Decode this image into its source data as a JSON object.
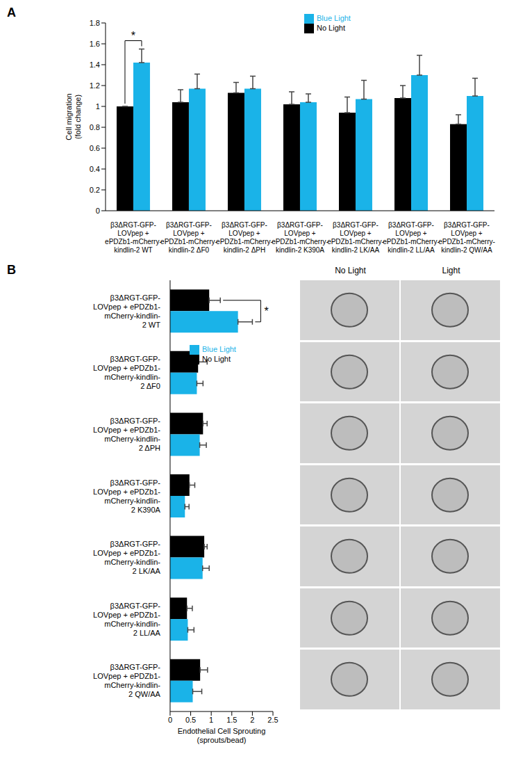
{
  "chart_data": [
    {
      "type": "bar",
      "title": "A",
      "categories": [
        "β3ΔRGT-GFP-LOVpep + ePDZb1-mCherry-kindlin-2 WT",
        "β3ΔRGT-GFP-LOVpep + ePDZb1-mCherry-kindlin-2 ΔF0",
        "β3ΔRGT-GFP-LOVpep + ePDZb1-mCherry-kindlin-2 ΔPH",
        "β3ΔRGT-GFP-LOVpep + ePDZb1-mCherry-kindlin-2 K390A",
        "β3ΔRGT-GFP-LOVpep + ePDZb1-mCherry-kindlin-2 LK/AA",
        "β3ΔRGT-GFP-LOVpep + ePDZb1-mCherry-kindlin-2 LL/AA",
        "β3ΔRGT-GFP-LOVpep + ePDZb1-mCherry-kindlin-2 QW/AA"
      ],
      "series": [
        {
          "name": "No Light",
          "color": "#000000",
          "values": [
            1.0,
            1.04,
            1.13,
            1.02,
            0.94,
            1.08,
            0.83
          ],
          "errors": [
            0.0,
            0.12,
            0.1,
            0.12,
            0.15,
            0.12,
            0.09
          ]
        },
        {
          "name": "Blue Light",
          "color": "#1ab3e8",
          "values": [
            1.42,
            1.17,
            1.17,
            1.04,
            1.07,
            1.3,
            1.1
          ],
          "errors": [
            0.13,
            0.14,
            0.12,
            0.08,
            0.18,
            0.19,
            0.17
          ]
        }
      ],
      "y_label": "Cell migration (fold change)",
      "ylim": [
        0,
        1.8
      ],
      "yticks": [
        0,
        0.2,
        0.4,
        0.6,
        0.8,
        1,
        1.2,
        1.4,
        1.6,
        1.8
      ],
      "grid": false,
      "legend": "top",
      "annotations": [
        {
          "text": "*",
          "category": "β3ΔRGT-GFP-LOVpep + ePDZb1-mCherry-kindlin-2 WT"
        }
      ]
    },
    {
      "type": "bar",
      "title": "B",
      "orientation": "horizontal",
      "categories": [
        "β3ΔRGT-GFP-LOVpep + ePDZb1-mCherry-kindlin-2 WT",
        "β3ΔRGT-GFP-LOVpep + ePDZb1-mCherry-kindlin-2 ΔF0",
        "β3ΔRGT-GFP-LOVpep + ePDZb1-mCherry-kindlin-2 ΔPH",
        "β3ΔRGT-GFP-LOVpep + ePDZb1-mCherry-kindlin-2 K390A",
        "β3ΔRGT-GFP-LOVpep + ePDZb1-mCherry-kindlin-2 LK/AA",
        "β3ΔRGT-GFP-LOVpep + ePDZb1-mCherry-kindlin-2 LL/AA",
        "β3ΔRGT-GFP-LOVpep + ePDZb1-mCherry-kindlin-2 QW/AA"
      ],
      "series": [
        {
          "name": "No Light",
          "color": "#000000",
          "values": [
            0.95,
            0.68,
            0.8,
            0.47,
            0.83,
            0.41,
            0.73
          ],
          "errors": [
            0.27,
            0.22,
            0.1,
            0.13,
            0.07,
            0.13,
            0.18
          ]
        },
        {
          "name": "Blue Light",
          "color": "#1ab3e8",
          "values": [
            1.65,
            0.65,
            0.72,
            0.36,
            0.79,
            0.43,
            0.55
          ],
          "errors": [
            0.35,
            0.15,
            0.16,
            0.1,
            0.16,
            0.15,
            0.22
          ]
        }
      ],
      "x_label": "Endothelial Cell Sprouting (sprouts/bead)",
      "xlim": [
        0,
        2.5
      ],
      "xticks": [
        0,
        0.5,
        1,
        1.5,
        2,
        2.5
      ],
      "grid": false,
      "legend": "top",
      "annotations": [
        {
          "text": "*",
          "category": "β3ΔRGT-GFP-LOVpep + ePDZb1-mCherry-kindlin-2 WT"
        }
      ]
    }
  ],
  "image_panel": {
    "column_headers": [
      "No Light",
      "Light"
    ]
  }
}
